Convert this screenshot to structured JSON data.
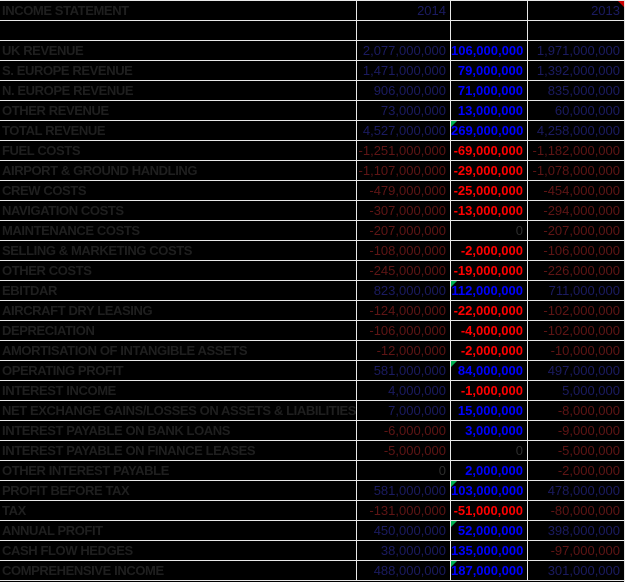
{
  "sheet": {
    "title": "INCOME STATEMENT",
    "colors": {
      "grid": "#e8e8e8",
      "label": "#1f1f1f",
      "sidePositive": "#1b1b60",
      "sideNegative": "#5e1515",
      "zero": "#2e2e2e",
      "diffPositive": "#0000ff",
      "diffNegative": "#ff0000",
      "commentGreen": "#00b050",
      "commentRed": "#cc0000"
    },
    "rows": [
      {
        "label": "INCOME STATEMENT",
        "y2014": "2014",
        "diff": "",
        "y2013": "2013",
        "header": true,
        "red_note": true
      },
      {
        "label": "",
        "y2014": "",
        "diff": "",
        "y2013": ""
      },
      {
        "label": "UK REVENUE",
        "y2014": "2,077,000,000",
        "diff": "106,000,000",
        "y2013": "1,971,000,000"
      },
      {
        "label": "S. EUROPE REVENUE",
        "y2014": "1,471,000,000",
        "diff": "79,000,000",
        "y2013": "1,392,000,000"
      },
      {
        "label": "N. EUROPE REVENUE",
        "y2014": "906,000,000",
        "diff": "71,000,000",
        "y2013": "835,000,000"
      },
      {
        "label": "OTHER REVENUE",
        "y2014": "73,000,000",
        "diff": "13,000,000",
        "y2013": "60,000,000"
      },
      {
        "label": "TOTAL REVENUE",
        "y2014": "4,527,000,000",
        "diff": "269,000,000",
        "y2013": "4,258,000,000",
        "green_note": true
      },
      {
        "label": "FUEL COSTS",
        "y2014": "-1,251,000,000",
        "diff": "-69,000,000",
        "y2013": "-1,182,000,000"
      },
      {
        "label": "AIRPORT & GROUND HANDLING",
        "y2014": "-1,107,000,000",
        "diff": "-29,000,000",
        "y2013": "-1,078,000,000"
      },
      {
        "label": "CREW COSTS",
        "y2014": "-479,000,000",
        "diff": "-25,000,000",
        "y2013": "-454,000,000"
      },
      {
        "label": "NAVIGATION COSTS",
        "y2014": "-307,000,000",
        "diff": "-13,000,000",
        "y2013": "-294,000,000"
      },
      {
        "label": "MAINTENANCE COSTS",
        "y2014": "-207,000,000",
        "diff": "0",
        "y2013": "-207,000,000"
      },
      {
        "label": "SELLING & MARKETING COSTS",
        "y2014": "-108,000,000",
        "diff": "-2,000,000",
        "y2013": "-106,000,000"
      },
      {
        "label": "OTHER COSTS",
        "y2014": "-245,000,000",
        "diff": "-19,000,000",
        "y2013": "-226,000,000"
      },
      {
        "label": "EBITDAR",
        "y2014": "823,000,000",
        "diff": "112,000,000",
        "y2013": "711,000,000",
        "green_note": true
      },
      {
        "label": "AIRCRAFT DRY LEASING",
        "y2014": "-124,000,000",
        "diff": "-22,000,000",
        "y2013": "-102,000,000"
      },
      {
        "label": "DEPRECIATION",
        "y2014": "-106,000,000",
        "diff": "-4,000,000",
        "y2013": "-102,000,000"
      },
      {
        "label": "AMORTISATION OF INTANGIBLE ASSETS",
        "y2014": "-12,000,000",
        "diff": "-2,000,000",
        "y2013": "-10,000,000"
      },
      {
        "label": "OPERATING PROFIT",
        "y2014": "581,000,000",
        "diff": "84,000,000",
        "y2013": "497,000,000",
        "green_note": true
      },
      {
        "label": "INTEREST INCOME",
        "y2014": "4,000,000",
        "diff": "-1,000,000",
        "y2013": "5,000,000"
      },
      {
        "label": "NET EXCHANGE GAINS/LOSSES ON ASSETS & LIABILITIES",
        "y2014": "7,000,000",
        "diff": "15,000,000",
        "y2013": "-8,000,000"
      },
      {
        "label": "INTEREST PAYABLE ON BANK LOANS",
        "y2014": "-6,000,000",
        "diff": "3,000,000",
        "y2013": "-9,000,000"
      },
      {
        "label": "INTEREST PAYABLE ON FINANCE LEASES",
        "y2014": "-5,000,000",
        "diff": "0",
        "y2013": "-5,000,000"
      },
      {
        "label": "OTHER INTEREST PAYABLE",
        "y2014": "0",
        "diff": "2,000,000",
        "y2013": "-2,000,000"
      },
      {
        "label": "PROFIT BEFORE TAX",
        "y2014": "581,000,000",
        "diff": "103,000,000",
        "y2013": "478,000,000",
        "green_note": true
      },
      {
        "label": "TAX",
        "y2014": "-131,000,000",
        "diff": "-51,000,000",
        "y2013": "-80,000,000"
      },
      {
        "label": "ANNUAL PROFIT",
        "y2014": "450,000,000",
        "diff": "52,000,000",
        "y2013": "398,000,000",
        "green_note": true
      },
      {
        "label": "CASH FLOW HEDGES",
        "y2014": "38,000,000",
        "diff": "135,000,000",
        "y2013": "-97,000,000"
      },
      {
        "label": "COMPREHENSIVE INCOME",
        "y2014": "488,000,000",
        "diff": "187,000,000",
        "y2013": "301,000,000",
        "green_note": true
      }
    ]
  }
}
